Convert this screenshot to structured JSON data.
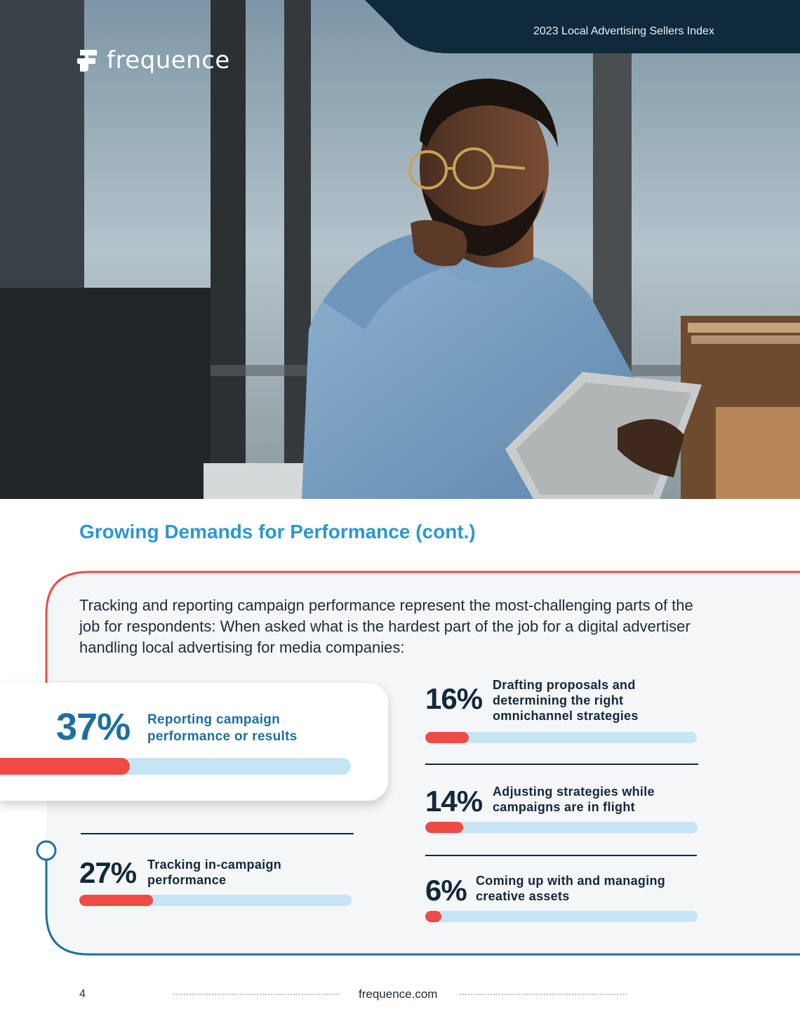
{
  "header": {
    "report_title": "2023 Local Advertising Sellers Index",
    "brand": "frequence",
    "colors": {
      "navy": "#0e2a3c",
      "accent_blue": "#2e96cf",
      "accent_red": "#ee4b45",
      "track": "#c6e4f4"
    }
  },
  "hero_image": {
    "icon": "office-man-with-tablet-photo"
  },
  "section": {
    "title": "Growing Demands for Performance (cont.)",
    "intro": "Tracking and reporting campaign performance represent the most-challenging parts of the job for respondents: When asked what is the hardest part of the job for a digital advertiser handling local advertising for media companies:"
  },
  "stats": [
    {
      "percent_label": "37%",
      "value": 0.37,
      "label": "Reporting campaign performance or results"
    },
    {
      "percent_label": "27%",
      "value": 0.27,
      "label": "Tracking in-campaign performance"
    },
    {
      "percent_label": "16%",
      "value": 0.16,
      "label": "Drafting proposals and determining the right omnichannel strategies"
    },
    {
      "percent_label": "14%",
      "value": 0.14,
      "label": "Adjusting strategies while campaigns are in flight"
    },
    {
      "percent_label": "6%",
      "value": 0.06,
      "label": "Coming up with and managing creative assets"
    }
  ],
  "footer": {
    "page_number": "4",
    "url": "frequence.com"
  }
}
